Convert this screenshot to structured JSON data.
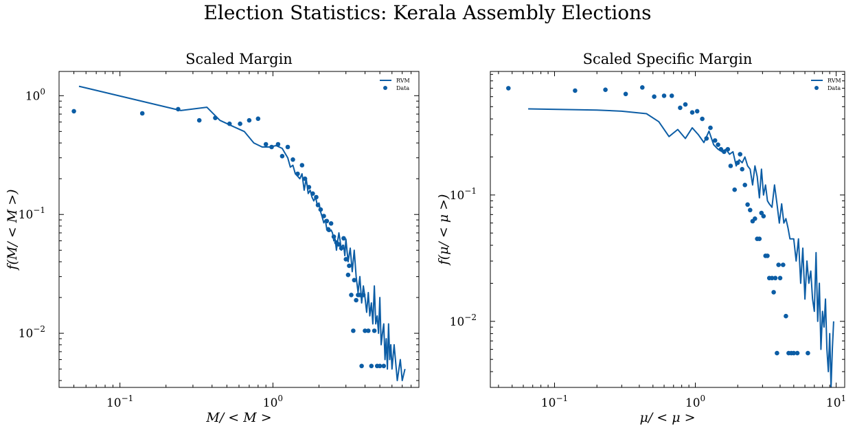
{
  "figure": {
    "title": "Election Statistics: Kerala Assembly Elections"
  },
  "colors": {
    "series": "#0c5da5"
  },
  "chart_data": [
    {
      "type": "scatter",
      "title": "Scaled Margin",
      "xlabel": "M/ < M >",
      "ylabel": "f(M/ < M >)",
      "xscale": "log",
      "yscale": "log",
      "xlim": [
        0.04,
        9.0
      ],
      "ylim": [
        0.0035,
        1.6
      ],
      "xticks": [
        {
          "value": 0.1,
          "label": "10",
          "exp": "−1"
        },
        {
          "value": 1,
          "label": "10",
          "exp": "0"
        }
      ],
      "yticks": [
        {
          "value": 0.01,
          "label": "10",
          "exp": "−2"
        },
        {
          "value": 0.1,
          "label": "10",
          "exp": "−1"
        },
        {
          "value": 1,
          "label": "10",
          "exp": "0"
        }
      ],
      "legend": {
        "position": "top-right",
        "entries": [
          "RVM",
          "Data"
        ]
      },
      "series": [
        {
          "name": "RVM",
          "kind": "line",
          "x": [
            0.054,
            0.25,
            0.37,
            0.45,
            0.55,
            0.65,
            0.75,
            0.85,
            0.95,
            1.05,
            1.15,
            1.25,
            1.3,
            1.35,
            1.4,
            1.45,
            1.5,
            1.55,
            1.6,
            1.65,
            1.7,
            1.75,
            1.8,
            1.85,
            1.9,
            1.95,
            2.0,
            2.05,
            2.1,
            2.15,
            2.2,
            2.25,
            2.3,
            2.35,
            2.4,
            2.45,
            2.5,
            2.55,
            2.6,
            2.65,
            2.7,
            2.75,
            2.8,
            2.85,
            2.9,
            2.95,
            3.0,
            3.1,
            3.2,
            3.3,
            3.4,
            3.5,
            3.6,
            3.7,
            3.8,
            3.9,
            4.0,
            4.1,
            4.2,
            4.3,
            4.4,
            4.5,
            4.6,
            4.7,
            4.8,
            4.9,
            5.0,
            5.1,
            5.2,
            5.3,
            5.4,
            5.5,
            5.6,
            5.7,
            5.8,
            5.9,
            6.0,
            6.2,
            6.5,
            6.8,
            7.0,
            7.3
          ],
          "y": [
            1.2,
            0.75,
            0.8,
            0.62,
            0.55,
            0.5,
            0.4,
            0.37,
            0.37,
            0.38,
            0.36,
            0.3,
            0.25,
            0.26,
            0.22,
            0.21,
            0.2,
            0.22,
            0.16,
            0.2,
            0.15,
            0.16,
            0.14,
            0.13,
            0.14,
            0.12,
            0.125,
            0.105,
            0.095,
            0.085,
            0.09,
            0.075,
            0.072,
            0.072,
            0.074,
            0.07,
            0.06,
            0.062,
            0.05,
            0.06,
            0.07,
            0.06,
            0.05,
            0.055,
            0.055,
            0.045,
            0.062,
            0.04,
            0.052,
            0.033,
            0.05,
            0.03,
            0.022,
            0.03,
            0.018,
            0.025,
            0.02,
            0.015,
            0.022,
            0.014,
            0.018,
            0.012,
            0.025,
            0.012,
            0.014,
            0.01,
            0.02,
            0.008,
            0.01,
            0.012,
            0.006,
            0.009,
            0.005,
            0.012,
            0.006,
            0.008,
            0.005,
            0.008,
            0.004,
            0.006,
            0.004,
            0.005
          ]
        },
        {
          "name": "Data",
          "kind": "scatter",
          "x": [
            0.05,
            0.14,
            0.24,
            0.33,
            0.42,
            0.52,
            0.61,
            0.7,
            0.8,
            0.9,
            0.98,
            1.08,
            1.15,
            1.25,
            1.35,
            1.45,
            1.55,
            1.62,
            1.72,
            1.82,
            1.92,
            1.97,
            2.05,
            2.15,
            2.25,
            2.3,
            2.4,
            2.5,
            2.6,
            2.7,
            2.8,
            2.9,
            3.0,
            3.1,
            3.15,
            3.25,
            3.35,
            3.4,
            3.5,
            3.6,
            3.7,
            3.8,
            3.9,
            4.0,
            4.2,
            4.4,
            4.6,
            4.8,
            5.0,
            5.3
          ],
          "y": [
            0.74,
            0.71,
            0.77,
            0.62,
            0.65,
            0.58,
            0.58,
            0.62,
            0.64,
            0.39,
            0.37,
            0.39,
            0.31,
            0.37,
            0.29,
            0.22,
            0.26,
            0.2,
            0.17,
            0.15,
            0.14,
            0.12,
            0.11,
            0.097,
            0.088,
            0.075,
            0.084,
            0.065,
            0.058,
            0.056,
            0.052,
            0.063,
            0.042,
            0.031,
            0.037,
            0.021,
            0.0105,
            0.028,
            0.019,
            0.021,
            0.021,
            0.0053,
            0.021,
            0.0105,
            0.0105,
            0.0053,
            0.0105,
            0.0053,
            0.0053,
            0.0053
          ]
        }
      ]
    },
    {
      "type": "scatter",
      "title": "Scaled Specific Margin",
      "xlabel": "μ/ < μ >",
      "ylabel": "f(μ/ < μ >)",
      "xscale": "log",
      "yscale": "log",
      "xlim": [
        0.035,
        11.5
      ],
      "ylim": [
        0.003,
        0.95
      ],
      "xticks": [
        {
          "value": 0.1,
          "label": "10",
          "exp": "−1"
        },
        {
          "value": 1,
          "label": "10",
          "exp": "0"
        },
        {
          "value": 10,
          "label": "10",
          "exp": "1"
        }
      ],
      "yticks": [
        {
          "value": 0.01,
          "label": "10",
          "exp": "−2"
        },
        {
          "value": 0.1,
          "label": "10",
          "exp": "−1"
        }
      ],
      "legend": {
        "position": "top-right",
        "entries": [
          "RVM",
          "Data"
        ]
      },
      "series": [
        {
          "name": "RVM",
          "kind": "line",
          "x": [
            0.065,
            0.2,
            0.3,
            0.45,
            0.55,
            0.65,
            0.75,
            0.85,
            0.95,
            1.05,
            1.15,
            1.25,
            1.35,
            1.45,
            1.55,
            1.65,
            1.75,
            1.85,
            1.95,
            2.05,
            2.15,
            2.25,
            2.35,
            2.45,
            2.55,
            2.65,
            2.75,
            2.85,
            2.95,
            3.05,
            3.15,
            3.25,
            3.35,
            3.5,
            3.65,
            3.8,
            3.95,
            4.1,
            4.25,
            4.4,
            4.55,
            4.7,
            4.85,
            5.0,
            5.2,
            5.4,
            5.6,
            5.8,
            6.0,
            6.2,
            6.4,
            6.6,
            6.8,
            7.0,
            7.2,
            7.4,
            7.6,
            7.8,
            8.0,
            8.2,
            8.4,
            8.6,
            8.8,
            9.0,
            9.2,
            9.4,
            9.6
          ],
          "y": [
            0.48,
            0.47,
            0.46,
            0.44,
            0.38,
            0.29,
            0.33,
            0.28,
            0.34,
            0.3,
            0.26,
            0.32,
            0.25,
            0.23,
            0.22,
            0.23,
            0.21,
            0.22,
            0.17,
            0.19,
            0.18,
            0.2,
            0.17,
            0.16,
            0.12,
            0.17,
            0.14,
            0.095,
            0.16,
            0.1,
            0.12,
            0.09,
            0.085,
            0.08,
            0.12,
            0.085,
            0.06,
            0.085,
            0.06,
            0.065,
            0.055,
            0.045,
            0.045,
            0.045,
            0.03,
            0.045,
            0.02,
            0.038,
            0.015,
            0.03,
            0.02,
            0.025,
            0.015,
            0.012,
            0.035,
            0.01,
            0.02,
            0.006,
            0.012,
            0.009,
            0.015,
            0.006,
            0.004,
            0.008,
            0.003,
            0.006,
            0.01
          ]
        },
        {
          "name": "Data",
          "kind": "scatter",
          "x": [
            0.047,
            0.14,
            0.23,
            0.32,
            0.42,
            0.51,
            0.6,
            0.68,
            0.78,
            0.85,
            0.95,
            1.03,
            1.12,
            1.2,
            1.28,
            1.38,
            1.45,
            1.52,
            1.6,
            1.7,
            1.78,
            1.9,
            2.0,
            2.08,
            2.15,
            2.25,
            2.35,
            2.45,
            2.55,
            2.65,
            2.75,
            2.85,
            2.95,
            3.05,
            3.15,
            3.25,
            3.35,
            3.5,
            3.6,
            3.7,
            3.8,
            3.9,
            4.0,
            4.2,
            4.4,
            4.6,
            4.8,
            5.0,
            5.3,
            6.3
          ],
          "y": [
            0.7,
            0.67,
            0.68,
            0.63,
            0.71,
            0.6,
            0.61,
            0.61,
            0.49,
            0.52,
            0.45,
            0.46,
            0.4,
            0.28,
            0.34,
            0.27,
            0.25,
            0.23,
            0.22,
            0.23,
            0.17,
            0.11,
            0.18,
            0.21,
            0.16,
            0.12,
            0.084,
            0.076,
            0.062,
            0.065,
            0.045,
            0.045,
            0.072,
            0.068,
            0.033,
            0.033,
            0.022,
            0.022,
            0.017,
            0.022,
            0.0056,
            0.028,
            0.022,
            0.028,
            0.011,
            0.0056,
            0.0056,
            0.0056,
            0.0056,
            0.0056
          ]
        }
      ]
    }
  ]
}
